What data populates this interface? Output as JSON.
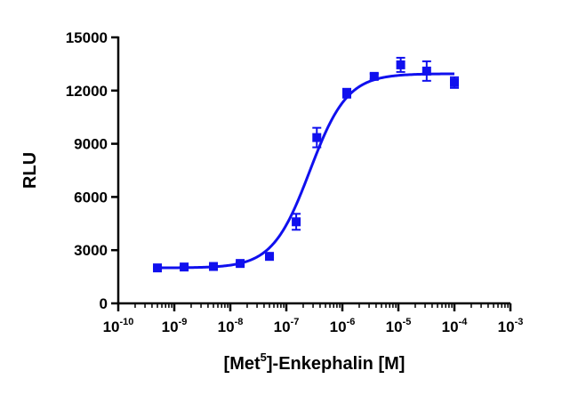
{
  "chart_data": {
    "type": "scatter",
    "title": "",
    "xlabel_parts": [
      "[Met",
      "5",
      "]-Enkephalin [M]"
    ],
    "ylabel": "RLU",
    "x_scale": "log",
    "xlim": [
      1e-10,
      0.001
    ],
    "ylim": [
      0,
      15000
    ],
    "x_ticks": [
      {
        "base": "10",
        "exp": "-10",
        "value": 1e-10
      },
      {
        "base": "10",
        "exp": "-9",
        "value": 1e-09
      },
      {
        "base": "10",
        "exp": "-8",
        "value": 1e-08
      },
      {
        "base": "10",
        "exp": "-7",
        "value": 1e-07
      },
      {
        "base": "10",
        "exp": "-6",
        "value": 1e-06
      },
      {
        "base": "10",
        "exp": "-5",
        "value": 1e-05
      },
      {
        "base": "10",
        "exp": "-4",
        "value": 0.0001
      },
      {
        "base": "10",
        "exp": "-3",
        "value": 0.001
      }
    ],
    "y_ticks": [
      {
        "label": "0",
        "value": 0
      },
      {
        "label": "3000",
        "value": 3000
      },
      {
        "label": "6000",
        "value": 6000
      },
      {
        "label": "9000",
        "value": 9000
      },
      {
        "label": "12000",
        "value": 12000
      },
      {
        "label": "15000",
        "value": 15000
      }
    ],
    "grid": false,
    "legend": "none",
    "color": "#1010ee",
    "series": [
      {
        "points": [
          {
            "x": 5e-10,
            "y": 2000,
            "err": 60
          },
          {
            "x": 1.5e-09,
            "y": 2050,
            "err": 60
          },
          {
            "x": 5e-09,
            "y": 2080,
            "err": 60
          },
          {
            "x": 1.5e-08,
            "y": 2250,
            "err": 80
          },
          {
            "x": 5e-08,
            "y": 2650,
            "err": 80
          },
          {
            "x": 1.5e-07,
            "y": 4600,
            "err": 450
          },
          {
            "x": 3.5e-07,
            "y": 9350,
            "err": 550
          },
          {
            "x": 1.2e-06,
            "y": 11850,
            "err": 250
          },
          {
            "x": 3.7e-06,
            "y": 12800,
            "err": 150
          },
          {
            "x": 1.1e-05,
            "y": 13450,
            "err": 400
          },
          {
            "x": 3.2e-05,
            "y": 13100,
            "err": 550
          },
          {
            "x": 0.0001,
            "y": 12450,
            "err": 300
          }
        ],
        "fit": {
          "bottom": 2000,
          "top": 12950,
          "log_ec50": -6.58,
          "hill": 1.3,
          "log_x_range": [
            -9.3,
            -4.0
          ]
        }
      }
    ]
  }
}
